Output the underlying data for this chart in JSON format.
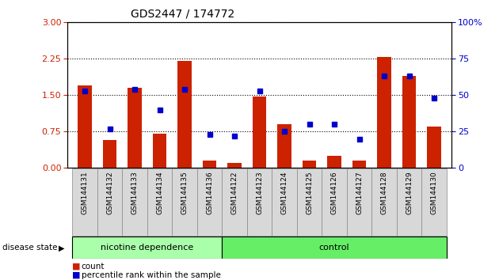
{
  "title": "GDS2447 / 174772",
  "categories": [
    "GSM144131",
    "GSM144132",
    "GSM144133",
    "GSM144134",
    "GSM144135",
    "GSM144136",
    "GSM144122",
    "GSM144123",
    "GSM144124",
    "GSM144125",
    "GSM144126",
    "GSM144127",
    "GSM144128",
    "GSM144129",
    "GSM144130"
  ],
  "bar_values": [
    1.7,
    0.58,
    1.65,
    0.7,
    2.2,
    0.15,
    0.1,
    1.48,
    0.9,
    0.15,
    0.25,
    0.15,
    2.28,
    1.9,
    0.85
  ],
  "dot_pct": [
    53,
    27,
    54,
    40,
    54,
    23,
    22,
    53,
    25,
    30,
    30,
    20,
    63,
    63,
    48
  ],
  "bar_color": "#cc2200",
  "dot_color": "#0000cc",
  "ylim_left": [
    0,
    3
  ],
  "ylim_right": [
    0,
    100
  ],
  "yticks_left": [
    0,
    0.75,
    1.5,
    2.25,
    3
  ],
  "yticks_right": [
    0,
    25,
    50,
    75,
    100
  ],
  "group1_label": "nicotine dependence",
  "group2_label": "control",
  "group1_count": 6,
  "group2_count": 9,
  "legend_count_label": "count",
  "legend_pct_label": "percentile rank within the sample",
  "disease_state_label": "disease state",
  "group1_color": "#aaffaa",
  "group2_color": "#66ee66",
  "tick_color_left": "#cc2200",
  "tick_color_right": "#0000cc",
  "bg_color": "#ffffff",
  "bar_width": 0.55
}
